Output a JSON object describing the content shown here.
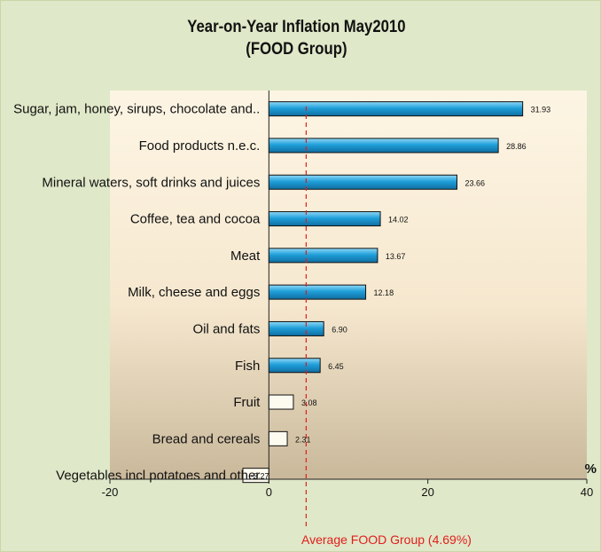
{
  "chart_data": {
    "type": "bar",
    "orientation": "horizontal",
    "title": "Year-on-Year Inflation  May2010",
    "subtitle": "(FOOD Group)",
    "categories": [
      "Sugar, jam, honey, sirups, chocolate and..",
      "Food products n.e.c.",
      "Mineral waters, soft drinks and juices",
      "Coffee, tea and cocoa",
      "Meat",
      "Milk, cheese and eggs",
      "Oil and fats",
      "Fish",
      "Fruit",
      "Bread and cereals",
      "Vegetables incl potatoes and other"
    ],
    "values": [
      31.93,
      28.86,
      23.66,
      14.02,
      13.67,
      12.18,
      6.9,
      6.45,
      3.08,
      2.31,
      -3.27
    ],
    "value_labels": [
      "31.93",
      "28.86",
      "23.66",
      "14.02",
      "13.67",
      "12.18",
      "6.90",
      "6.45",
      "3.08",
      "2.31",
      "-3.27"
    ],
    "highlight_above_average": true,
    "colors": {
      "above_average": "#1f9fd9",
      "below_average": "#fdfaf0",
      "average_line": "#e21d1d",
      "frame": "#dfe8c8",
      "plot_top": "#fdf5e4",
      "plot_bottom": "#c9b89a"
    },
    "xlim": [
      -20,
      40
    ],
    "xticks": [
      -20,
      0,
      20,
      40
    ],
    "xtick_labels": [
      "-20",
      "0",
      "20",
      "40"
    ],
    "x_unit": "%",
    "average": {
      "value": 4.69,
      "label": "Average FOOD Group (4.69%)"
    },
    "grid": false,
    "legend": "none"
  }
}
